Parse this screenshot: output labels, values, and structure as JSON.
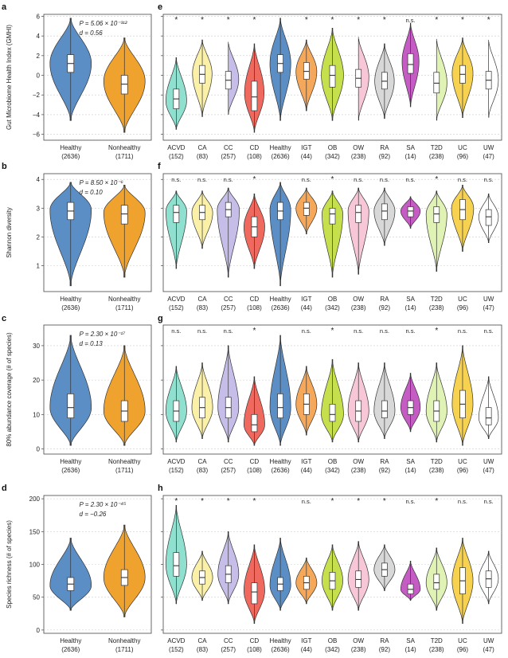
{
  "colors": {
    "Healthy": "#5b8ec5",
    "Nonhealthy": "#f0a22e",
    "ACVD": "#8fe0cf",
    "CA": "#fbf0a8",
    "CC": "#c6bde8",
    "CD": "#f0695f",
    "IGT": "#f6a85a",
    "OB": "#c5e04c",
    "OW": "#f7c7d8",
    "RA": "#d8d8d8",
    "SA": "#c45cc4",
    "T2D": "#e0f2b4",
    "UC": "#f6d250",
    "UW": "#ffffff"
  },
  "chart_data": [
    {
      "panel": "a",
      "type": "violin",
      "ylabel": "Gut Microbiome Health Index (GMHI)",
      "ylim": [
        -6.6,
        6.2
      ],
      "ticks": [
        -6,
        -4,
        -2,
        0,
        2,
        4,
        6
      ],
      "annotation": [
        "P = 5.06 × 10⁻³¹²",
        "d = 0.56"
      ],
      "groups": [
        {
          "name": "Healthy",
          "n": "(2636)",
          "min": -4.6,
          "q1": 0.3,
          "median": 1.2,
          "q3": 2.1,
          "max": 5.8,
          "mode": 1.2,
          "width": 1.0
        },
        {
          "name": "Nonhealthy",
          "n": "(1711)",
          "min": -5.8,
          "q1": -1.9,
          "median": -0.9,
          "q3": 0.0,
          "max": 3.8,
          "mode": -0.6,
          "width": 1.0
        }
      ]
    },
    {
      "panel": "e",
      "type": "violin",
      "ylim": [
        -6.6,
        6.2
      ],
      "ticks": [
        -6,
        -4,
        -2,
        0,
        2,
        4,
        6
      ],
      "groups": [
        {
          "name": "ACVD",
          "n": "(152)",
          "sig": "*",
          "min": -5.5,
          "q1": -3.4,
          "median": -2.4,
          "q3": -1.4,
          "max": 1.8,
          "mode": -2.6,
          "width": 0.8
        },
        {
          "name": "CA",
          "n": "(83)",
          "sig": "*",
          "min": -4.2,
          "q1": -0.8,
          "median": 0.1,
          "q3": 1.0,
          "max": 3.6,
          "mode": 0.2,
          "width": 0.75
        },
        {
          "name": "CC",
          "n": "(257)",
          "sig": "*",
          "min": -4.0,
          "q1": -1.4,
          "median": -0.5,
          "q3": 0.4,
          "max": 3.4,
          "mode": -0.4,
          "width": 0.8
        },
        {
          "name": "CD",
          "n": "(108)",
          "sig": "*",
          "min": -5.8,
          "q1": -3.6,
          "median": -2.2,
          "q3": -0.6,
          "max": 3.2,
          "mode": -1.8,
          "width": 0.75
        },
        {
          "name": "Healthy",
          "n": "(2636)",
          "sig": "",
          "min": -4.6,
          "q1": 0.3,
          "median": 1.2,
          "q3": 2.1,
          "max": 5.8,
          "mode": 1.2,
          "width": 0.8
        },
        {
          "name": "IGT",
          "n": "(44)",
          "sig": "*",
          "min": -3.6,
          "q1": -0.4,
          "median": 0.4,
          "q3": 1.3,
          "max": 3.6,
          "mode": 0.4,
          "width": 0.8
        },
        {
          "name": "OB",
          "n": "(342)",
          "sig": "*",
          "min": -4.6,
          "q1": -1.2,
          "median": 0.0,
          "q3": 1.0,
          "max": 4.8,
          "mode": 0.0,
          "width": 0.85
        },
        {
          "name": "OW",
          "n": "(238)",
          "sig": "*",
          "min": -4.6,
          "q1": -1.2,
          "median": -0.3,
          "q3": 0.6,
          "max": 3.9,
          "mode": -0.2,
          "width": 0.8
        },
        {
          "name": "RA",
          "n": "(92)",
          "sig": "*",
          "min": -4.4,
          "q1": -1.4,
          "median": -0.6,
          "q3": 0.3,
          "max": 3.2,
          "mode": -0.6,
          "width": 0.75
        },
        {
          "name": "SA",
          "n": "(14)",
          "sig": "n.s.",
          "min": -3.2,
          "q1": 0.2,
          "median": 1.1,
          "q3": 2.2,
          "max": 5.3,
          "mode": 1.4,
          "width": 0.65
        },
        {
          "name": "T2D",
          "n": "(238)",
          "sig": "*",
          "min": -4.6,
          "q1": -1.8,
          "median": -0.8,
          "q3": 0.3,
          "max": 3.7,
          "mode": -0.8,
          "width": 0.8
        },
        {
          "name": "UC",
          "n": "(96)",
          "sig": "*",
          "min": -4.3,
          "q1": -0.8,
          "median": 0.1,
          "q3": 1.0,
          "max": 3.8,
          "mode": 0.2,
          "width": 0.8
        },
        {
          "name": "UW",
          "n": "(47)",
          "sig": "*",
          "min": -4.3,
          "q1": -1.4,
          "median": -0.5,
          "q3": 0.4,
          "max": 3.6,
          "mode": -0.5,
          "width": 0.75
        }
      ]
    },
    {
      "panel": "b",
      "type": "violin",
      "ylabel": "Shannon diversity",
      "ylim": [
        0.1,
        4.2
      ],
      "ticks": [
        1,
        2,
        3,
        4
      ],
      "annotation": [
        "P = 8.50 × 10⁻⁶",
        "d = 0.10"
      ],
      "groups": [
        {
          "name": "Healthy",
          "n": "(2636)",
          "min": 0.3,
          "q1": 2.6,
          "median": 2.9,
          "q3": 3.2,
          "max": 3.9,
          "mode": 2.95,
          "width": 1.0
        },
        {
          "name": "Nonhealthy",
          "n": "(1711)",
          "min": 0.6,
          "q1": 2.45,
          "median": 2.8,
          "q3": 3.1,
          "max": 3.8,
          "mode": 2.85,
          "width": 1.0
        }
      ]
    },
    {
      "panel": "f",
      "type": "violin",
      "ylim": [
        0.1,
        4.2
      ],
      "ticks": [
        1,
        2,
        3,
        4
      ],
      "groups": [
        {
          "name": "ACVD",
          "n": "(152)",
          "sig": "n.s.",
          "min": 0.9,
          "q1": 2.5,
          "median": 2.85,
          "q3": 3.1,
          "max": 3.6,
          "mode": 2.9,
          "width": 0.8
        },
        {
          "name": "CA",
          "n": "(83)",
          "sig": "n.s.",
          "min": 1.6,
          "q1": 2.6,
          "median": 2.85,
          "q3": 3.1,
          "max": 3.6,
          "mode": 2.85,
          "width": 0.8
        },
        {
          "name": "CC",
          "n": "(257)",
          "sig": "n.s.",
          "min": 0.6,
          "q1": 2.7,
          "median": 2.95,
          "q3": 3.2,
          "max": 3.7,
          "mode": 2.95,
          "width": 0.85
        },
        {
          "name": "CD",
          "n": "(108)",
          "sig": "*",
          "min": 0.9,
          "q1": 2.0,
          "median": 2.35,
          "q3": 2.7,
          "max": 3.5,
          "mode": 2.35,
          "width": 0.8
        },
        {
          "name": "Healthy",
          "n": "(2636)",
          "sig": "",
          "min": 0.3,
          "q1": 2.6,
          "median": 2.9,
          "q3": 3.2,
          "max": 3.9,
          "mode": 2.95,
          "width": 0.8
        },
        {
          "name": "IGT",
          "n": "(44)",
          "sig": "n.s.",
          "min": 2.1,
          "q1": 2.75,
          "median": 3.0,
          "q3": 3.2,
          "max": 3.7,
          "mode": 3.0,
          "width": 0.8
        },
        {
          "name": "OB",
          "n": "(342)",
          "sig": "*",
          "min": 0.6,
          "q1": 2.45,
          "median": 2.8,
          "q3": 3.0,
          "max": 3.6,
          "mode": 2.8,
          "width": 0.8
        },
        {
          "name": "OW",
          "n": "(238)",
          "sig": "n.s.",
          "min": 0.7,
          "q1": 2.5,
          "median": 2.85,
          "q3": 3.1,
          "max": 3.7,
          "mode": 2.9,
          "width": 0.8
        },
        {
          "name": "RA",
          "n": "(92)",
          "sig": "n.s.",
          "min": 1.7,
          "q1": 2.6,
          "median": 2.9,
          "q3": 3.15,
          "max": 3.7,
          "mode": 2.9,
          "width": 0.8
        },
        {
          "name": "SA",
          "n": "(14)",
          "sig": "n.s.",
          "min": 2.3,
          "q1": 2.7,
          "median": 2.9,
          "q3": 3.05,
          "max": 3.4,
          "mode": 2.9,
          "width": 0.75
        },
        {
          "name": "T2D",
          "n": "(238)",
          "sig": "*",
          "min": 0.8,
          "q1": 2.5,
          "median": 2.8,
          "q3": 3.05,
          "max": 3.6,
          "mode": 2.8,
          "width": 0.8
        },
        {
          "name": "UC",
          "n": "(96)",
          "sig": "n.s.",
          "min": 1.5,
          "q1": 2.6,
          "median": 2.95,
          "q3": 3.3,
          "max": 3.8,
          "mode": 3.0,
          "width": 0.85
        },
        {
          "name": "UW",
          "n": "(47)",
          "sig": "n.s.",
          "min": 1.8,
          "q1": 2.4,
          "median": 2.7,
          "q3": 2.95,
          "max": 3.5,
          "mode": 2.7,
          "width": 0.75
        }
      ]
    },
    {
      "panel": "c",
      "type": "violin",
      "ylabel": "80% abundance coverage (# of species)",
      "ylim": [
        -1.5,
        36
      ],
      "ticks": [
        0,
        10,
        20,
        30
      ],
      "annotation": [
        "P = 2.30 × 10⁻¹⁷",
        "d = 0.13"
      ],
      "groups": [
        {
          "name": "Healthy",
          "n": "(2636)",
          "min": 1,
          "q1": 9,
          "median": 12,
          "q3": 16,
          "max": 33,
          "mode": 12,
          "width": 1.0
        },
        {
          "name": "Nonhealthy",
          "n": "(1711)",
          "min": 1,
          "q1": 8,
          "median": 11,
          "q3": 14,
          "max": 30,
          "mode": 11,
          "width": 1.0
        }
      ]
    },
    {
      "panel": "g",
      "type": "violin",
      "ylim": [
        -1.5,
        36
      ],
      "ticks": [
        0,
        10,
        20,
        30
      ],
      "groups": [
        {
          "name": "ACVD",
          "n": "(152)",
          "sig": "n.s.",
          "min": 2,
          "q1": 8,
          "median": 11,
          "q3": 14,
          "max": 24,
          "mode": 11,
          "width": 0.8
        },
        {
          "name": "CA",
          "n": "(83)",
          "sig": "n.s.",
          "min": 3,
          "q1": 9,
          "median": 12,
          "q3": 15,
          "max": 25,
          "mode": 12,
          "width": 0.8
        },
        {
          "name": "CC",
          "n": "(257)",
          "sig": "n.s.",
          "min": 2,
          "q1": 9,
          "median": 12,
          "q3": 15,
          "max": 30,
          "mode": 12,
          "width": 0.8
        },
        {
          "name": "CD",
          "n": "(108)",
          "sig": "*",
          "min": 1,
          "q1": 5,
          "median": 7,
          "q3": 10,
          "max": 21,
          "mode": 7,
          "width": 0.8
        },
        {
          "name": "Healthy",
          "n": "(2636)",
          "sig": "",
          "min": 1,
          "q1": 9,
          "median": 12,
          "q3": 16,
          "max": 33,
          "mode": 12,
          "width": 0.8
        },
        {
          "name": "IGT",
          "n": "(44)",
          "sig": "n.s.",
          "min": 4,
          "q1": 10,
          "median": 13,
          "q3": 16,
          "max": 24,
          "mode": 13,
          "width": 0.8
        },
        {
          "name": "OB",
          "n": "(342)",
          "sig": "*",
          "min": 2,
          "q1": 8,
          "median": 10,
          "q3": 13,
          "max": 26,
          "mode": 10,
          "width": 0.85
        },
        {
          "name": "OW",
          "n": "(238)",
          "sig": "n.s.",
          "min": 2,
          "q1": 8,
          "median": 11,
          "q3": 14,
          "max": 25,
          "mode": 11,
          "width": 0.8
        },
        {
          "name": "RA",
          "n": "(92)",
          "sig": "n.s.",
          "min": 3,
          "q1": 9,
          "median": 11,
          "q3": 14,
          "max": 25,
          "mode": 11,
          "width": 0.8
        },
        {
          "name": "SA",
          "n": "(14)",
          "sig": "n.s.",
          "min": 5,
          "q1": 10,
          "median": 12,
          "q3": 14,
          "max": 22,
          "mode": 12,
          "width": 0.75
        },
        {
          "name": "T2D",
          "n": "(238)",
          "sig": "*",
          "min": 2,
          "q1": 8,
          "median": 11,
          "q3": 14,
          "max": 25,
          "mode": 11,
          "width": 0.8
        },
        {
          "name": "UC",
          "n": "(96)",
          "sig": "n.s.",
          "min": 1,
          "q1": 9,
          "median": 13,
          "q3": 17,
          "max": 30,
          "mode": 13,
          "width": 0.8
        },
        {
          "name": "UW",
          "n": "(47)",
          "sig": "n.s.",
          "min": 3,
          "q1": 7,
          "median": 9,
          "q3": 12,
          "max": 21,
          "mode": 9,
          "width": 0.75
        }
      ]
    },
    {
      "panel": "d",
      "type": "violin",
      "ylabel": "Species richness (# of species)",
      "ylim": [
        -5,
        205
      ],
      "ticks": [
        0,
        50,
        100,
        150,
        200
      ],
      "annotation": [
        "P = 2.30 × 10⁻⁴⁵",
        "d = −0.26"
      ],
      "groups": [
        {
          "name": "Healthy",
          "n": "(2636)",
          "min": 30,
          "q1": 60,
          "median": 70,
          "q3": 80,
          "max": 140,
          "mode": 68,
          "width": 1.0
        },
        {
          "name": "Nonhealthy",
          "n": "(1711)",
          "min": 20,
          "q1": 68,
          "median": 80,
          "q3": 92,
          "max": 160,
          "mode": 80,
          "width": 1.0
        }
      ]
    },
    {
      "panel": "h",
      "type": "violin",
      "ylim": [
        -5,
        205
      ],
      "ticks": [
        0,
        50,
        100,
        150,
        200
      ],
      "groups": [
        {
          "name": "ACVD",
          "n": "(152)",
          "sig": "*",
          "min": 40,
          "q1": 82,
          "median": 98,
          "q3": 118,
          "max": 190,
          "mode": 100,
          "width": 0.8
        },
        {
          "name": "CA",
          "n": "(83)",
          "sig": "*",
          "min": 45,
          "q1": 70,
          "median": 80,
          "q3": 90,
          "max": 120,
          "mode": 80,
          "width": 0.8
        },
        {
          "name": "CC",
          "n": "(257)",
          "sig": "*",
          "min": 40,
          "q1": 72,
          "median": 85,
          "q3": 98,
          "max": 150,
          "mode": 85,
          "width": 0.8
        },
        {
          "name": "CD",
          "n": "(108)",
          "sig": "*",
          "min": 10,
          "q1": 40,
          "median": 58,
          "q3": 72,
          "max": 130,
          "mode": 60,
          "width": 0.8
        },
        {
          "name": "Healthy",
          "n": "(2636)",
          "sig": "",
          "min": 30,
          "q1": 60,
          "median": 70,
          "q3": 80,
          "max": 140,
          "mode": 68,
          "width": 0.8
        },
        {
          "name": "IGT",
          "n": "(44)",
          "sig": "n.s.",
          "min": 40,
          "q1": 62,
          "median": 72,
          "q3": 82,
          "max": 110,
          "mode": 72,
          "width": 0.8
        },
        {
          "name": "OB",
          "n": "(342)",
          "sig": "*",
          "min": 30,
          "q1": 62,
          "median": 75,
          "q3": 88,
          "max": 130,
          "mode": 75,
          "width": 0.8
        },
        {
          "name": "OW",
          "n": "(238)",
          "sig": "*",
          "min": 30,
          "q1": 65,
          "median": 77,
          "q3": 90,
          "max": 135,
          "mode": 77,
          "width": 0.8
        },
        {
          "name": "RA",
          "n": "(92)",
          "sig": "*",
          "min": 60,
          "q1": 82,
          "median": 92,
          "q3": 102,
          "max": 130,
          "mode": 92,
          "width": 0.8
        },
        {
          "name": "SA",
          "n": "(14)",
          "sig": "n.s.",
          "min": 45,
          "q1": 55,
          "median": 62,
          "q3": 70,
          "max": 105,
          "mode": 62,
          "width": 0.75
        },
        {
          "name": "T2D",
          "n": "(238)",
          "sig": "*",
          "min": 30,
          "q1": 62,
          "median": 72,
          "q3": 85,
          "max": 125,
          "mode": 72,
          "width": 0.8
        },
        {
          "name": "UC",
          "n": "(96)",
          "sig": "n.s.",
          "min": 10,
          "q1": 55,
          "median": 75,
          "q3": 95,
          "max": 140,
          "mode": 75,
          "width": 0.8
        },
        {
          "name": "UW",
          "n": "(47)",
          "sig": "n.s.",
          "min": 40,
          "q1": 65,
          "median": 78,
          "q3": 90,
          "max": 120,
          "mode": 78,
          "width": 0.75
        }
      ]
    }
  ]
}
